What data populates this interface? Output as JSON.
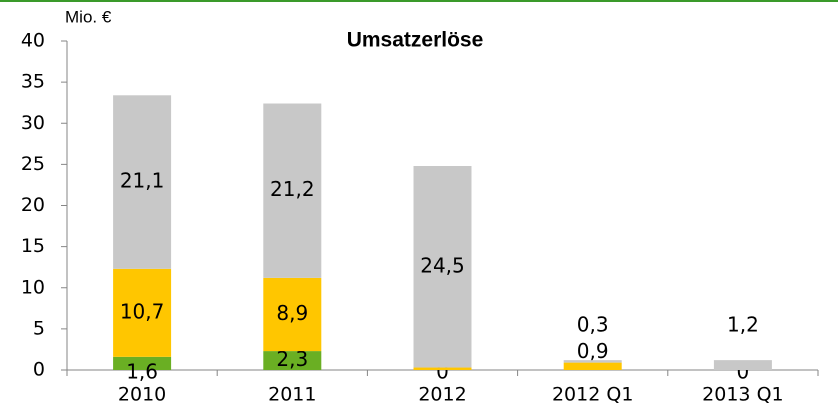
{
  "chart_data": {
    "type": "stacked_bar",
    "title": "Umsatzerlöse",
    "y_label": "Mio. €",
    "categories": [
      "2010",
      "2011",
      "2012",
      "2012 Q1",
      "2013 Q1"
    ],
    "series": [
      {
        "color": "#6aaf23",
        "values": [
          1.6,
          2.3,
          0,
          null,
          0
        ],
        "value_labels": [
          "1,6",
          "2,3",
          "0",
          null,
          "0"
        ]
      },
      {
        "color": "#ffc600",
        "values": [
          10.7,
          8.9,
          0.3,
          0.9,
          null
        ],
        "value_labels": [
          "10,7",
          "8,9",
          "0,3",
          "0,9",
          null
        ]
      },
      {
        "color": "#c8c8c8",
        "values": [
          21.1,
          21.2,
          24.5,
          0.3,
          1.2
        ],
        "value_labels": [
          "21,1",
          "21,2",
          "24,5",
          "0,3",
          "1,2"
        ]
      }
    ],
    "ylim": [
      0,
      40
    ],
    "yticks": [
      0,
      5,
      10,
      15,
      20,
      25,
      30,
      35,
      40
    ]
  }
}
